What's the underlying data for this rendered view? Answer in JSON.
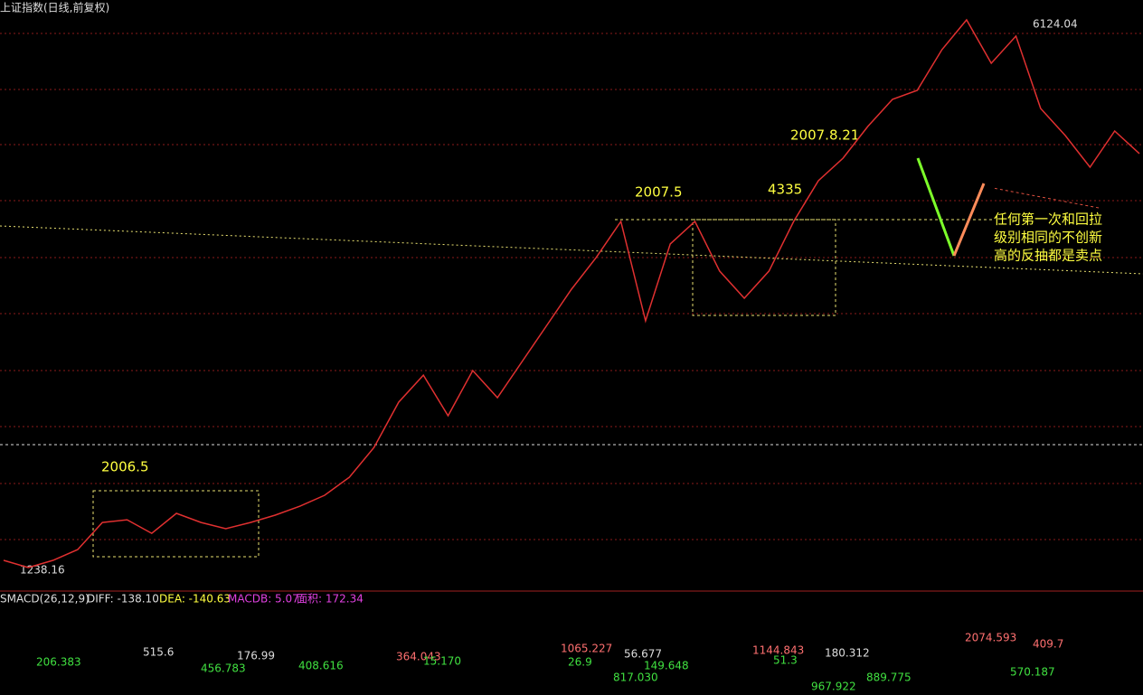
{
  "chart_data": {
    "type": "line",
    "title": "上证指数(日线,前复权)",
    "categories": [
      null,
      null,
      null,
      null,
      null,
      null,
      null,
      null,
      null,
      null,
      null,
      null,
      null,
      null,
      null,
      null,
      null,
      null,
      null,
      null,
      null,
      null,
      null,
      null,
      null,
      null,
      null,
      null,
      null,
      null,
      null,
      null,
      null,
      null,
      null,
      null,
      null,
      null,
      null,
      null,
      null,
      null,
      null,
      null,
      null,
      null,
      null
    ],
    "series": [
      {
        "name": "上证指数",
        "color": "#e03030",
        "values": [
          1303,
          1238,
          1303,
          1399,
          1641,
          1665,
          1544,
          1722,
          1641,
          1585,
          1641,
          1706,
          1786,
          1883,
          2044,
          2310,
          2714,
          2955,
          2593,
          2996,
          2754,
          3076,
          3399,
          3721,
          4004,
          4326,
          3439,
          4125,
          4326,
          3883,
          3641,
          3883,
          4326,
          4689,
          4890,
          5173,
          5415,
          5495,
          5858,
          6124,
          5737,
          5979,
          5334,
          5092,
          4810,
          5132,
          4931
        ]
      }
    ],
    "ylim": [
      1061,
      6301
    ],
    "annotations": {
      "low": "1238.16",
      "high": "6124.04",
      "p2006": "2006.5",
      "p2007": "2007.5",
      "peak4335": "4335",
      "p20078": "2007.8.21",
      "note": [
        "任何第一次和回拉",
        "级别相同的不创新",
        "高的反抽都是卖点"
      ]
    },
    "macd": {
      "name": "SMACD(26,12,9)",
      "diff": "DIFF: -138.10",
      "dea": "DEA: -140.63",
      "macdb": "MACDB: 5.07",
      "area": "面积: 172.34",
      "labels": [
        "206.383",
        "515.6",
        "456.783",
        "176.99",
        "408.616",
        "364.043",
        "15.170",
        "1065.227",
        "26.9",
        "817.030",
        "56.677",
        "149.648",
        "1144.843",
        "51.3",
        "967.922",
        "180.312",
        "889.775",
        "2074.593",
        "570.187",
        "409.7"
      ]
    }
  }
}
